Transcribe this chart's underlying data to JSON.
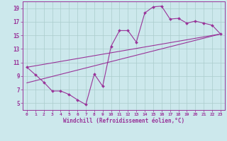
{
  "xlabel": "Windchill (Refroidissement éolien,°C)",
  "ylabel": "",
  "background_color": "#cce8ec",
  "line_color": "#993399",
  "grid_color": "#aacccc",
  "xlim": [
    -0.5,
    23.5
  ],
  "ylim": [
    4.0,
    20.0
  ],
  "yticks": [
    5,
    7,
    9,
    11,
    13,
    15,
    17,
    19
  ],
  "xticks": [
    0,
    1,
    2,
    3,
    4,
    5,
    6,
    7,
    8,
    9,
    10,
    11,
    12,
    13,
    14,
    15,
    16,
    17,
    18,
    19,
    20,
    21,
    22,
    23
  ],
  "series1_x": [
    0,
    1,
    2,
    3,
    4,
    5,
    6,
    7,
    8,
    9,
    10,
    11,
    12,
    13,
    14,
    15,
    16,
    17,
    18,
    19,
    20,
    21,
    22,
    23
  ],
  "series1_y": [
    10.3,
    9.2,
    8.1,
    6.8,
    6.8,
    6.3,
    5.5,
    4.8,
    9.3,
    7.5,
    13.4,
    15.7,
    15.7,
    14.0,
    18.3,
    19.2,
    19.3,
    17.4,
    17.5,
    16.8,
    17.1,
    16.8,
    16.5,
    15.2
  ],
  "line1_x": [
    0,
    23
  ],
  "line1_y": [
    10.3,
    15.2
  ],
  "line2_x": [
    0,
    23
  ],
  "line2_y": [
    8.0,
    15.2
  ]
}
